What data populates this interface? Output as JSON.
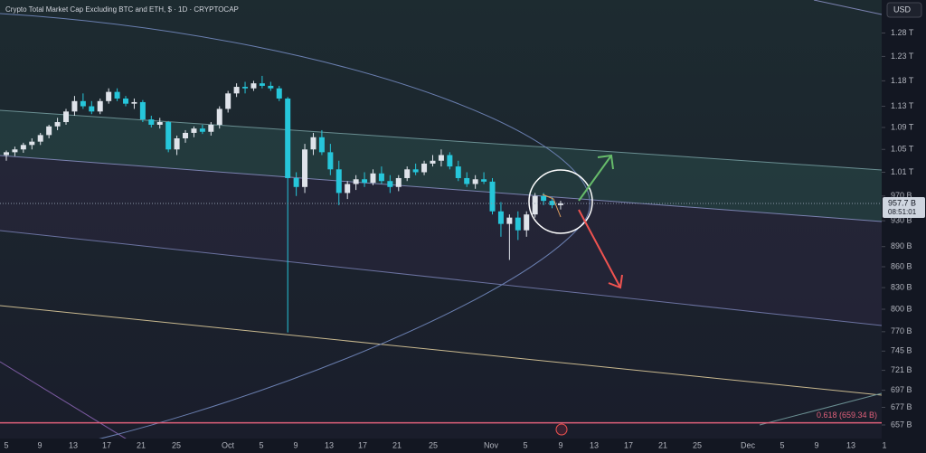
{
  "header": {
    "title": "Crypto Total Market Cap Excluding BTC and ETH, $ · 1D · CRYPTOCAP",
    "currency": "USD"
  },
  "chart_data": {
    "type": "candlestick",
    "log_scale": true,
    "up_color": "#dfe3ea",
    "down_color": "#26c6da",
    "categories": [
      "5",
      "9",
      "13",
      "17",
      "21",
      "25",
      "Oct",
      "5",
      "9",
      "13",
      "17",
      "21",
      "25",
      "Nov",
      "5",
      "9",
      "13",
      "17",
      "21",
      "25",
      "Dec",
      "5",
      "9",
      "13",
      "1"
    ],
    "open": [
      1040,
      1045,
      1050,
      1058,
      1064,
      1076,
      1092,
      1100,
      1120,
      1140,
      1130,
      1120,
      1140,
      1158,
      1145,
      1135,
      1138,
      1105,
      1095,
      1100,
      1050,
      1070,
      1080,
      1088,
      1082,
      1095,
      1125,
      1155,
      1168,
      1165,
      1175,
      1170,
      1165,
      1145,
      1000,
      985,
      1050,
      1072,
      1045,
      1015,
      975,
      990,
      998,
      992,
      1008,
      995,
      985,
      1000,
      1015,
      1010,
      1025,
      1030,
      1040,
      1020,
      1000,
      990,
      998,
      994,
      945,
      925,
      935,
      915,
      940,
      970,
      962,
      955
    ],
    "high": [
      1048,
      1055,
      1062,
      1070,
      1080,
      1095,
      1108,
      1125,
      1150,
      1155,
      1140,
      1145,
      1165,
      1165,
      1150,
      1145,
      1142,
      1112,
      1108,
      1102,
      1075,
      1085,
      1092,
      1095,
      1100,
      1130,
      1160,
      1175,
      1178,
      1180,
      1190,
      1178,
      1170,
      1148,
      1010,
      1060,
      1080,
      1085,
      1060,
      1030,
      995,
      1005,
      1010,
      1015,
      1020,
      1005,
      1005,
      1020,
      1025,
      1030,
      1040,
      1050,
      1045,
      1030,
      1010,
      1005,
      1010,
      1000,
      960,
      940,
      945,
      945,
      975,
      975,
      968,
      962
    ],
    "low": [
      1030,
      1038,
      1044,
      1050,
      1058,
      1070,
      1085,
      1095,
      1112,
      1125,
      1115,
      1115,
      1135,
      1140,
      1130,
      1125,
      1100,
      1090,
      1088,
      1045,
      1040,
      1062,
      1072,
      1078,
      1075,
      1088,
      1118,
      1148,
      1155,
      1160,
      1165,
      1160,
      1140,
      769,
      970,
      975,
      1040,
      1040,
      1005,
      955,
      965,
      980,
      985,
      988,
      990,
      975,
      978,
      995,
      1005,
      1005,
      1020,
      1020,
      1015,
      995,
      985,
      982,
      990,
      940,
      905,
      870,
      900,
      905,
      935,
      955,
      950,
      948
    ],
    "close": [
      1045,
      1050,
      1058,
      1064,
      1076,
      1092,
      1100,
      1120,
      1140,
      1130,
      1120,
      1140,
      1158,
      1145,
      1135,
      1138,
      1105,
      1095,
      1100,
      1050,
      1070,
      1080,
      1088,
      1082,
      1095,
      1125,
      1155,
      1168,
      1165,
      1175,
      1170,
      1165,
      1145,
      1000,
      985,
      1050,
      1072,
      1045,
      1015,
      975,
      990,
      998,
      992,
      1008,
      995,
      985,
      1000,
      1015,
      1010,
      1025,
      1030,
      1040,
      1020,
      1000,
      990,
      998,
      994,
      945,
      925,
      935,
      915,
      940,
      970,
      962,
      955,
      958
    ],
    "ylim": [
      642,
      1354
    ],
    "yticks": [
      {
        "value": 1280,
        "label": "1.28 T"
      },
      {
        "value": 1230,
        "label": "1.23 T"
      },
      {
        "value": 1180,
        "label": "1.18 T"
      },
      {
        "value": 1130,
        "label": "1.13 T"
      },
      {
        "value": 1090,
        "label": "1.09 T"
      },
      {
        "value": 1050,
        "label": "1.05 T"
      },
      {
        "value": 1010,
        "label": "1.01 T"
      },
      {
        "value": 970,
        "label": "970 B"
      },
      {
        "value": 930,
        "label": "930 B"
      },
      {
        "value": 890,
        "label": "890 B"
      },
      {
        "value": 860,
        "label": "860 B"
      },
      {
        "value": 830,
        "label": "830 B"
      },
      {
        "value": 800,
        "label": "800 B"
      },
      {
        "value": 770,
        "label": "770 B"
      },
      {
        "value": 745,
        "label": "745 B"
      },
      {
        "value": 721,
        "label": "721 B"
      },
      {
        "value": 697,
        "label": "697 B"
      },
      {
        "value": 677,
        "label": "677 B"
      },
      {
        "value": 657,
        "label": "657 B"
      }
    ],
    "current_price": {
      "value": 957.7,
      "label": "957.7 B"
    },
    "countdown": "08:51:01",
    "fib_level": {
      "value": 659.34,
      "label": "0.618 (659.34 B)"
    }
  }
}
